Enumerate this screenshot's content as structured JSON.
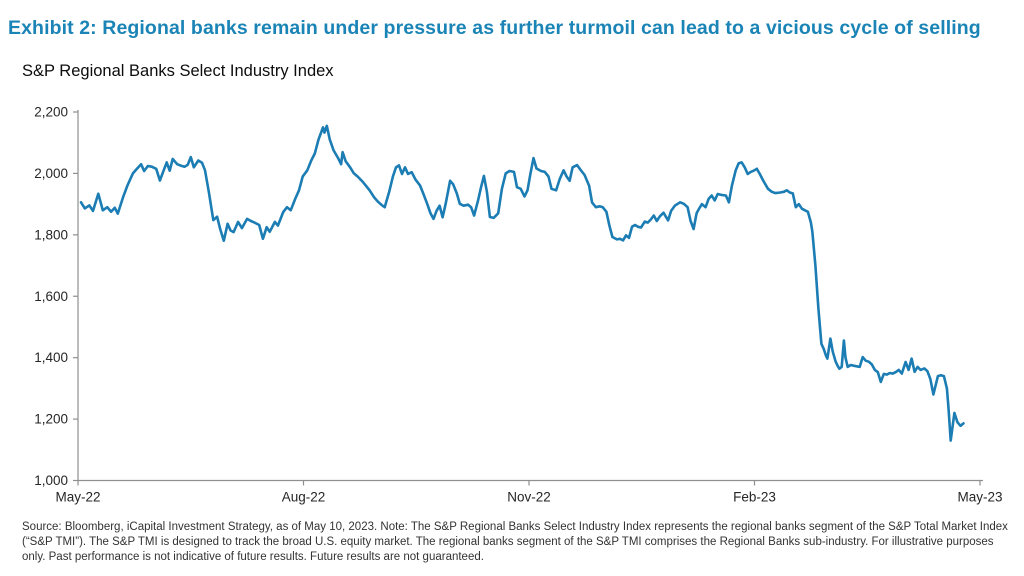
{
  "page": {
    "title": "Exhibit 2: Regional banks remain under pressure as further turmoil can lead to a vicious cycle of selling",
    "title_color": "#1b84b7"
  },
  "chart": {
    "subtitle": "S&P Regional Banks Select Industry Index",
    "line_color": "#1b7db3",
    "axis_color": "#8f8f8f",
    "tick_label_color": "#262626"
  },
  "chart_data": {
    "type": "line",
    "title": "S&P Regional Banks Select Industry Index",
    "xlabel": "",
    "ylabel": "",
    "x_unit": "months since May-2022",
    "xlim": [
      0,
      12
    ],
    "ylim": [
      1000,
      2200
    ],
    "y_ticks": [
      1000,
      1200,
      1400,
      1600,
      1800,
      2000,
      2200
    ],
    "x_tick_positions": [
      0,
      3,
      6,
      9,
      12
    ],
    "x_tick_labels": [
      "May-22",
      "Aug-22",
      "Nov-22",
      "Feb-23",
      "May-23"
    ],
    "grid": false,
    "legend": false,
    "series": [
      {
        "name": "S&P Regional Banks Select Industry Index",
        "color": "#1b7db3",
        "points": [
          [
            0.04,
            1906
          ],
          [
            0.09,
            1886
          ],
          [
            0.15,
            1896
          ],
          [
            0.2,
            1878
          ],
          [
            0.27,
            1934
          ],
          [
            0.33,
            1880
          ],
          [
            0.39,
            1890
          ],
          [
            0.44,
            1875
          ],
          [
            0.49,
            1888
          ],
          [
            0.53,
            1869
          ],
          [
            0.6,
            1923
          ],
          [
            0.66,
            1962
          ],
          [
            0.73,
            2000
          ],
          [
            0.78,
            2014
          ],
          [
            0.84,
            2030
          ],
          [
            0.88,
            2008
          ],
          [
            0.93,
            2024
          ],
          [
            0.98,
            2022
          ],
          [
            1.04,
            2015
          ],
          [
            1.09,
            1977
          ],
          [
            1.14,
            2010
          ],
          [
            1.18,
            2036
          ],
          [
            1.22,
            2009
          ],
          [
            1.26,
            2047
          ],
          [
            1.32,
            2030
          ],
          [
            1.37,
            2025
          ],
          [
            1.42,
            2022
          ],
          [
            1.46,
            2028
          ],
          [
            1.5,
            2053
          ],
          [
            1.54,
            2020
          ],
          [
            1.6,
            2042
          ],
          [
            1.65,
            2035
          ],
          [
            1.69,
            2010
          ],
          [
            1.74,
            1940
          ],
          [
            1.8,
            1848
          ],
          [
            1.85,
            1859
          ],
          [
            1.89,
            1820
          ],
          [
            1.94,
            1781
          ],
          [
            1.99,
            1836
          ],
          [
            2.03,
            1814
          ],
          [
            2.07,
            1809
          ],
          [
            2.13,
            1842
          ],
          [
            2.18,
            1822
          ],
          [
            2.25,
            1852
          ],
          [
            2.3,
            1845
          ],
          [
            2.35,
            1840
          ],
          [
            2.41,
            1832
          ],
          [
            2.46,
            1787
          ],
          [
            2.51,
            1825
          ],
          [
            2.55,
            1810
          ],
          [
            2.62,
            1842
          ],
          [
            2.66,
            1830
          ],
          [
            2.73,
            1874
          ],
          [
            2.78,
            1890
          ],
          [
            2.83,
            1880
          ],
          [
            2.89,
            1917
          ],
          [
            2.94,
            1945
          ],
          [
            2.99,
            1990
          ],
          [
            3.05,
            2010
          ],
          [
            3.1,
            2040
          ],
          [
            3.15,
            2065
          ],
          [
            3.2,
            2110
          ],
          [
            3.26,
            2150
          ],
          [
            3.28,
            2133
          ],
          [
            3.31,
            2155
          ],
          [
            3.35,
            2110
          ],
          [
            3.4,
            2075
          ],
          [
            3.46,
            2050
          ],
          [
            3.5,
            2030
          ],
          [
            3.52,
            2069
          ],
          [
            3.56,
            2040
          ],
          [
            3.62,
            2020
          ],
          [
            3.67,
            2000
          ],
          [
            3.72,
            1990
          ],
          [
            3.78,
            1975
          ],
          [
            3.83,
            1960
          ],
          [
            3.88,
            1945
          ],
          [
            3.94,
            1922
          ],
          [
            3.99,
            1908
          ],
          [
            4.04,
            1897
          ],
          [
            4.08,
            1890
          ],
          [
            4.14,
            1940
          ],
          [
            4.19,
            1990
          ],
          [
            4.23,
            2020
          ],
          [
            4.27,
            2026
          ],
          [
            4.31,
            1998
          ],
          [
            4.35,
            2020
          ],
          [
            4.39,
            1998
          ],
          [
            4.44,
            2004
          ],
          [
            4.49,
            1980
          ],
          [
            4.55,
            1961
          ],
          [
            4.6,
            1930
          ],
          [
            4.65,
            1898
          ],
          [
            4.69,
            1870
          ],
          [
            4.73,
            1852
          ],
          [
            4.77,
            1878
          ],
          [
            4.81,
            1895
          ],
          [
            4.85,
            1857
          ],
          [
            4.89,
            1900
          ],
          [
            4.95,
            1976
          ],
          [
            4.99,
            1965
          ],
          [
            5.04,
            1935
          ],
          [
            5.08,
            1901
          ],
          [
            5.13,
            1895
          ],
          [
            5.19,
            1898
          ],
          [
            5.23,
            1890
          ],
          [
            5.27,
            1863
          ],
          [
            5.32,
            1910
          ],
          [
            5.36,
            1953
          ],
          [
            5.4,
            1992
          ],
          [
            5.44,
            1940
          ],
          [
            5.48,
            1858
          ],
          [
            5.53,
            1855
          ],
          [
            5.59,
            1870
          ],
          [
            5.64,
            1950
          ],
          [
            5.69,
            2000
          ],
          [
            5.74,
            2008
          ],
          [
            5.8,
            2005
          ],
          [
            5.84,
            1955
          ],
          [
            5.89,
            1950
          ],
          [
            5.94,
            1925
          ],
          [
            5.98,
            1945
          ],
          [
            6.02,
            2000
          ],
          [
            6.06,
            2050
          ],
          [
            6.1,
            2016
          ],
          [
            6.16,
            2008
          ],
          [
            6.21,
            2005
          ],
          [
            6.26,
            1990
          ],
          [
            6.3,
            1950
          ],
          [
            6.36,
            1945
          ],
          [
            6.41,
            1982
          ],
          [
            6.46,
            2010
          ],
          [
            6.5,
            1990
          ],
          [
            6.54,
            1976
          ],
          [
            6.58,
            2020
          ],
          [
            6.64,
            2027
          ],
          [
            6.69,
            2010
          ],
          [
            6.74,
            1995
          ],
          [
            6.8,
            1960
          ],
          [
            6.84,
            1905
          ],
          [
            6.89,
            1890
          ],
          [
            6.94,
            1893
          ],
          [
            6.98,
            1890
          ],
          [
            7.03,
            1875
          ],
          [
            7.07,
            1830
          ],
          [
            7.11,
            1793
          ],
          [
            7.17,
            1785
          ],
          [
            7.21,
            1787
          ],
          [
            7.25,
            1782
          ],
          [
            7.29,
            1798
          ],
          [
            7.33,
            1790
          ],
          [
            7.37,
            1826
          ],
          [
            7.41,
            1832
          ],
          [
            7.45,
            1826
          ],
          [
            7.49,
            1824
          ],
          [
            7.54,
            1843
          ],
          [
            7.58,
            1840
          ],
          [
            7.62,
            1850
          ],
          [
            7.66,
            1863
          ],
          [
            7.7,
            1845
          ],
          [
            7.74,
            1860
          ],
          [
            7.79,
            1872
          ],
          [
            7.85,
            1847
          ],
          [
            7.89,
            1878
          ],
          [
            7.94,
            1895
          ],
          [
            8.01,
            1906
          ],
          [
            8.06,
            1901
          ],
          [
            8.11,
            1890
          ],
          [
            8.15,
            1845
          ],
          [
            8.19,
            1819
          ],
          [
            8.23,
            1870
          ],
          [
            8.26,
            1884
          ],
          [
            8.3,
            1900
          ],
          [
            8.35,
            1890
          ],
          [
            8.39,
            1917
          ],
          [
            8.43,
            1928
          ],
          [
            8.47,
            1912
          ],
          [
            8.51,
            1933
          ],
          [
            8.56,
            1930
          ],
          [
            8.62,
            1928
          ],
          [
            8.66,
            1906
          ],
          [
            8.7,
            1960
          ],
          [
            8.75,
            2010
          ],
          [
            8.79,
            2033
          ],
          [
            8.83,
            2036
          ],
          [
            8.87,
            2020
          ],
          [
            8.91,
            1998
          ],
          [
            8.95,
            2005
          ],
          [
            8.99,
            2009
          ],
          [
            9.03,
            2015
          ],
          [
            9.07,
            1998
          ],
          [
            9.12,
            1975
          ],
          [
            9.18,
            1950
          ],
          [
            9.23,
            1940
          ],
          [
            9.28,
            1936
          ],
          [
            9.34,
            1938
          ],
          [
            9.39,
            1940
          ],
          [
            9.43,
            1945
          ],
          [
            9.47,
            1938
          ],
          [
            9.51,
            1935
          ],
          [
            9.55,
            1890
          ],
          [
            9.59,
            1900
          ],
          [
            9.63,
            1885
          ],
          [
            9.67,
            1880
          ],
          [
            9.71,
            1875
          ],
          [
            9.75,
            1840
          ],
          [
            9.77,
            1809
          ],
          [
            9.81,
            1700
          ],
          [
            9.85,
            1560
          ],
          [
            9.89,
            1445
          ],
          [
            9.92,
            1429
          ],
          [
            9.95,
            1407
          ],
          [
            9.97,
            1397
          ],
          [
            10.01,
            1462
          ],
          [
            10.04,
            1420
          ],
          [
            10.08,
            1387
          ],
          [
            10.11,
            1372
          ],
          [
            10.13,
            1364
          ],
          [
            10.16,
            1370
          ],
          [
            10.19,
            1456
          ],
          [
            10.21,
            1400
          ],
          [
            10.24,
            1370
          ],
          [
            10.28,
            1376
          ],
          [
            10.32,
            1374
          ],
          [
            10.36,
            1372
          ],
          [
            10.4,
            1370
          ],
          [
            10.44,
            1402
          ],
          [
            10.48,
            1390
          ],
          [
            10.52,
            1387
          ],
          [
            10.56,
            1378
          ],
          [
            10.6,
            1360
          ],
          [
            10.64,
            1353
          ],
          [
            10.68,
            1321
          ],
          [
            10.72,
            1347
          ],
          [
            10.76,
            1345
          ],
          [
            10.8,
            1350
          ],
          [
            10.84,
            1348
          ],
          [
            10.88,
            1353
          ],
          [
            10.92,
            1360
          ],
          [
            10.96,
            1348
          ],
          [
            11.01,
            1386
          ],
          [
            11.05,
            1360
          ],
          [
            11.09,
            1397
          ],
          [
            11.13,
            1354
          ],
          [
            11.17,
            1370
          ],
          [
            11.21,
            1360
          ],
          [
            11.26,
            1365
          ],
          [
            11.3,
            1356
          ],
          [
            11.34,
            1330
          ],
          [
            11.38,
            1280
          ],
          [
            11.44,
            1340
          ],
          [
            11.48,
            1343
          ],
          [
            11.52,
            1340
          ],
          [
            11.56,
            1300
          ],
          [
            11.58,
            1240
          ],
          [
            11.61,
            1130
          ],
          [
            11.66,
            1220
          ],
          [
            11.7,
            1190
          ],
          [
            11.74,
            1178
          ],
          [
            11.78,
            1186
          ]
        ]
      }
    ]
  },
  "footer": {
    "source_text": "Source: Bloomberg, iCapital Investment Strategy, as of May 10, 2023. Note: The S&P Regional Banks Select Industry Index represents the regional banks segment of the S&P Total Market Index (“S&P TMI”). The S&P TMI is designed to track the broad U.S. equity market. The regional banks segment of the S&P TMI comprises the Regional Banks sub-industry. For illustrative purposes only. Past performance is not indicative of future results. Future results are not guaranteed."
  }
}
